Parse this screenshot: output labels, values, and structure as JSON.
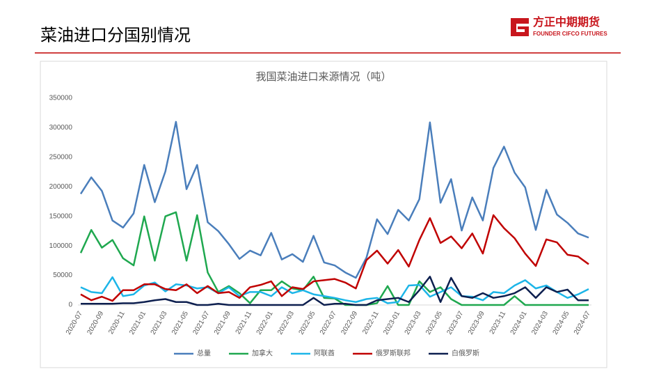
{
  "header": {
    "title": "菜油进口分国别情况"
  },
  "logo": {
    "name": "方正中期期货",
    "english": "FOUNDER CIFCO FUTURES"
  },
  "chart_data": {
    "type": "line",
    "title": "我国菜油进口来源情况（吨）",
    "categories": [
      "2020-07",
      null,
      "2020-09",
      null,
      "2020-11",
      null,
      "2021-01",
      null,
      "2021-03",
      null,
      "2021-05",
      null,
      "2021-07",
      null,
      "2021-09",
      null,
      "2021-11",
      null,
      "2022-01",
      null,
      "2022-03",
      null,
      "2022-05",
      null,
      "2022-07",
      null,
      "2022-09",
      null,
      "2022-11",
      null,
      "2023-01",
      null,
      "2023-03",
      null,
      "2023-05",
      null,
      "2023-07",
      null,
      "2023-09",
      null,
      "2023-11",
      null,
      "2024-01",
      null,
      "2024-03",
      null,
      "2024-05",
      null,
      "2024-07"
    ],
    "ylim": [
      0,
      350000
    ],
    "yticks": [
      0,
      50000,
      100000,
      150000,
      200000,
      250000,
      300000,
      350000
    ],
    "grid": false,
    "legend": "bottom",
    "series": [
      {
        "name": "总量",
        "color": "#4a7ebb",
        "values": [
          188000,
          216000,
          193000,
          143000,
          131000,
          155000,
          237000,
          174000,
          226000,
          310000,
          196000,
          237000,
          140000,
          125000,
          103000,
          78000,
          92000,
          84000,
          122000,
          77000,
          86000,
          73000,
          117000,
          72000,
          67000,
          55000,
          46000,
          80000,
          145000,
          120000,
          161000,
          143000,
          179000,
          309000,
          173000,
          213000,
          126000,
          182000,
          143000,
          232000,
          268000,
          224000,
          199000,
          127000,
          195000,
          153000,
          139000,
          121000,
          114000
        ]
      },
      {
        "name": "加拿大",
        "color": "#1fa84f",
        "values": [
          88000,
          127000,
          97000,
          110000,
          79000,
          67000,
          150000,
          75000,
          150000,
          157000,
          75000,
          152000,
          55000,
          22000,
          32000,
          20000,
          3000,
          25000,
          25000,
          40000,
          28000,
          25000,
          48000,
          12000,
          11000,
          0,
          0,
          0,
          3000,
          32000,
          0,
          0,
          40000,
          22000,
          30000,
          10000,
          0,
          0,
          0,
          0,
          0,
          15000,
          0,
          0,
          0,
          0,
          0,
          0,
          0
        ]
      },
      {
        "name": "阿联酋",
        "color": "#1cb5e8",
        "values": [
          30000,
          22000,
          20000,
          47000,
          15000,
          18000,
          33000,
          38000,
          23000,
          35000,
          33000,
          28000,
          30000,
          20000,
          30000,
          15000,
          22000,
          22000,
          15000,
          30000,
          20000,
          25000,
          18000,
          15000,
          12000,
          8000,
          5000,
          10000,
          12000,
          3000,
          5000,
          33000,
          34000,
          14000,
          22000,
          30000,
          15000,
          14000,
          8000,
          22000,
          20000,
          33000,
          42000,
          28000,
          33000,
          22000,
          12000,
          18000,
          27000
        ]
      },
      {
        "name": "俄罗斯联邦",
        "color": "#c00000",
        "values": [
          18000,
          8000,
          14000,
          7000,
          25000,
          25000,
          35000,
          35000,
          27000,
          25000,
          35000,
          20000,
          32000,
          20000,
          22000,
          12000,
          30000,
          34000,
          40000,
          15000,
          30000,
          27000,
          40000,
          42000,
          44000,
          38000,
          28000,
          76000,
          92000,
          70000,
          93000,
          65000,
          110000,
          147000,
          105000,
          116000,
          96000,
          121000,
          87000,
          152000,
          130000,
          113000,
          87000,
          66000,
          111000,
          106000,
          85000,
          82000,
          69000
        ]
      },
      {
        "name": "白俄罗斯",
        "color": "#0d1f4f",
        "values": [
          2000,
          2000,
          2000,
          2000,
          3000,
          3000,
          5000,
          8000,
          10000,
          5000,
          5000,
          0,
          0,
          2000,
          0,
          0,
          0,
          0,
          0,
          0,
          0,
          0,
          12000,
          0,
          2000,
          2000,
          0,
          0,
          8000,
          10000,
          12000,
          5000,
          25000,
          48000,
          5000,
          46000,
          15000,
          12000,
          20000,
          12000,
          15000,
          20000,
          30000,
          12000,
          30000,
          22000,
          26000,
          8000,
          8000
        ]
      }
    ]
  }
}
